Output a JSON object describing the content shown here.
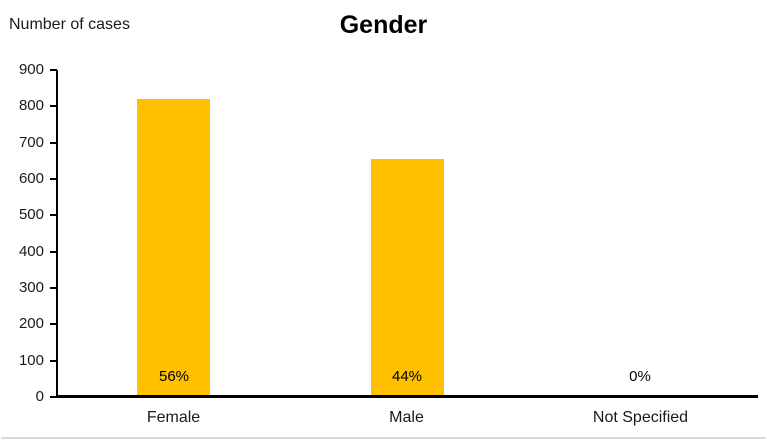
{
  "chart_data": {
    "type": "bar",
    "title": "Gender",
    "ylabel": "Number of cases",
    "xlabel": "",
    "categories": [
      "Female",
      "Male",
      "Not Specified"
    ],
    "values": [
      820,
      655,
      0
    ],
    "data_labels": [
      "56%",
      "44%",
      "0%"
    ],
    "ylim": [
      0,
      900
    ],
    "ytick_step": 100,
    "ytick_labels": [
      "900",
      "800",
      "700",
      "600",
      "500",
      "400",
      "300",
      "200",
      "100",
      "0"
    ],
    "grid": false,
    "legend": false,
    "bar_color": "#FFC000",
    "axis_color": "#000000",
    "text_color": "#000000",
    "divider_color": "#D9D9D9"
  }
}
